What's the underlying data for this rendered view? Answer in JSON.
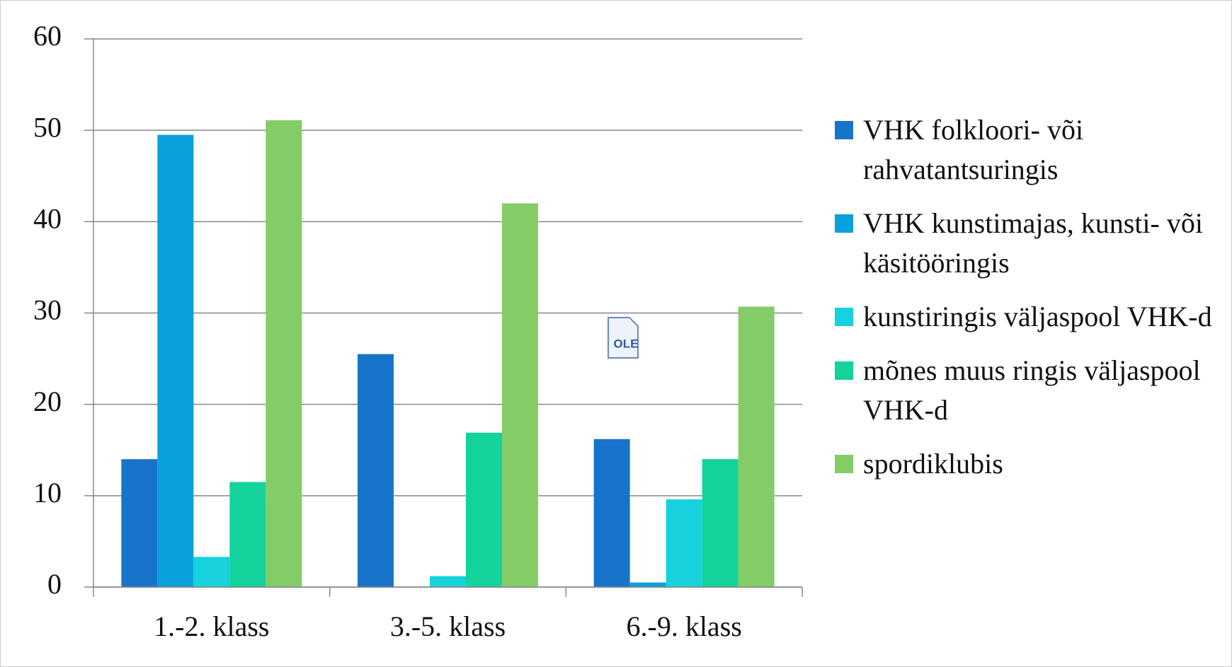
{
  "chart_data": {
    "type": "bar",
    "categories": [
      "1.-2. klass",
      "3.-5. klass",
      "6.-9. klass"
    ],
    "series": [
      {
        "name": "VHK folkloori- või rahvatantsuringis",
        "color": "#1874cb",
        "values": [
          14,
          25.5,
          16.2
        ]
      },
      {
        "name": "VHK kunstimajas, kunsti- või käsitööringis",
        "color": "#0aa0dc",
        "values": [
          49.5,
          0,
          0.5
        ]
      },
      {
        "name": "kunstiringis väljaspool VHK-d",
        "color": "#16d2dc",
        "values": [
          3.3,
          1.2,
          9.6
        ]
      },
      {
        "name": "mõnes muus ringis väljaspool VHK-d",
        "color": "#14d29c",
        "values": [
          11.5,
          16.9,
          14
        ]
      },
      {
        "name": "spordiklubis",
        "color": "#84cc68",
        "values": [
          51.1,
          42,
          30.7
        ]
      }
    ],
    "ylim": [
      0,
      60
    ],
    "yticks": [
      0,
      10,
      20,
      30,
      40,
      50,
      60
    ],
    "grid": true,
    "legend": "right",
    "icon_label": "OLE"
  }
}
